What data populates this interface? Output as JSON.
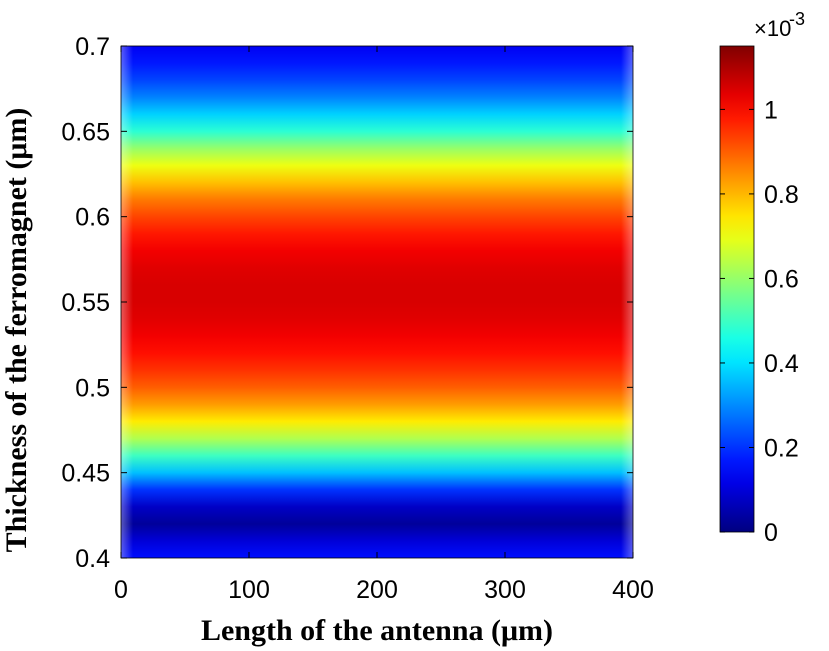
{
  "chart_data": {
    "type": "heatmap",
    "xlabel": "Length of the antenna (μm)",
    "ylabel": "Thickness of the ferromagnet (μm)",
    "x_range": [
      0,
      400
    ],
    "y_range": [
      0.4,
      0.7
    ],
    "x_ticks": [
      "0",
      "100",
      "200",
      "300",
      "400"
    ],
    "y_ticks": [
      "0.4",
      "0.45",
      "0.5",
      "0.55",
      "0.6",
      "0.65",
      "0.7"
    ],
    "colorbar": {
      "range": [
        0,
        0.00115
      ],
      "ticks": [
        "0",
        "0.2",
        "0.4",
        "0.6",
        "0.8",
        "1"
      ],
      "scale_label": "×10",
      "scale_exponent": "-3",
      "colormap": "jet"
    },
    "profile": {
      "thickness": [
        0.4,
        0.41,
        0.42,
        0.43,
        0.44,
        0.45,
        0.46,
        0.47,
        0.48,
        0.49,
        0.5,
        0.51,
        0.52,
        0.53,
        0.54,
        0.55,
        0.56,
        0.57,
        0.58,
        0.59,
        0.6,
        0.61,
        0.62,
        0.63,
        0.64,
        0.65,
        0.66,
        0.67,
        0.68,
        0.69,
        0.7
      ],
      "value_1e-3": [
        0.16,
        0.1,
        0.03,
        0.08,
        0.2,
        0.36,
        0.5,
        0.63,
        0.74,
        0.83,
        0.9,
        0.95,
        0.99,
        1.02,
        1.04,
        1.05,
        1.05,
        1.04,
        1.02,
        0.98,
        0.93,
        0.87,
        0.79,
        0.7,
        0.6,
        0.48,
        0.38,
        0.29,
        0.22,
        0.17,
        0.13
      ]
    }
  }
}
